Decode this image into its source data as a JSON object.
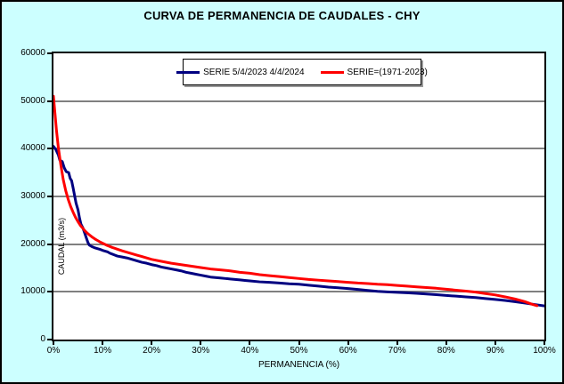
{
  "title": "CURVA DE PERMANENCIA DE CAUDALES - CHY",
  "colors": {
    "background": "#CCFFFF",
    "plot_background": "#FFFFFF",
    "gridline": "#808080",
    "axis": "#000000",
    "series_blue": "#000080",
    "series_red": "#FF0000"
  },
  "chart_data": {
    "type": "line",
    "title": "CURVA DE PERMANENCIA DE CAUDALES - CHY",
    "xlabel": "PERMANENCIA (%)",
    "ylabel": "CAUDAL (m3/s)",
    "xlim": [
      0,
      100
    ],
    "ylim": [
      0,
      60000
    ],
    "x_ticks": [
      "0%",
      "10%",
      "20%",
      "30%",
      "40%",
      "50%",
      "60%",
      "70%",
      "80%",
      "90%",
      "100%"
    ],
    "x_tick_values": [
      0,
      10,
      20,
      30,
      40,
      50,
      60,
      70,
      80,
      90,
      100
    ],
    "y_ticks": [
      0,
      10000,
      20000,
      30000,
      40000,
      50000,
      60000
    ],
    "grid": "horizontal",
    "legend_position": "top-center-inside",
    "series": [
      {
        "name": "SERIE 5/4/2023 4/4/2024",
        "color": "#000080",
        "points": [
          [
            0,
            40500
          ],
          [
            0.5,
            39800
          ],
          [
            1,
            38700
          ],
          [
            1.3,
            37600
          ],
          [
            1.8,
            37300
          ],
          [
            2.2,
            36000
          ],
          [
            2.6,
            35200
          ],
          [
            3.1,
            35000
          ],
          [
            3.4,
            33800
          ],
          [
            3.7,
            33300
          ],
          [
            4,
            31800
          ],
          [
            4.3,
            30200
          ],
          [
            4.6,
            28600
          ],
          [
            5,
            27200
          ],
          [
            5.3,
            25500
          ],
          [
            5.6,
            24200
          ],
          [
            6,
            23400
          ],
          [
            6.3,
            22500
          ],
          [
            6.6,
            21600
          ],
          [
            7,
            20400
          ],
          [
            7.3,
            19800
          ],
          [
            7.8,
            19500
          ],
          [
            8.5,
            19200
          ],
          [
            9.5,
            18900
          ],
          [
            10,
            18700
          ],
          [
            11,
            18400
          ],
          [
            11.5,
            18100
          ],
          [
            12.5,
            17700
          ],
          [
            13,
            17500
          ],
          [
            14,
            17300
          ],
          [
            15,
            17100
          ],
          [
            16,
            16800
          ],
          [
            17,
            16500
          ],
          [
            18,
            16200
          ],
          [
            19,
            16000
          ],
          [
            20,
            15700
          ],
          [
            21,
            15500
          ],
          [
            22,
            15200
          ],
          [
            23,
            15000
          ],
          [
            24,
            14800
          ],
          [
            25,
            14600
          ],
          [
            26,
            14400
          ],
          [
            27,
            14100
          ],
          [
            28,
            13900
          ],
          [
            29,
            13700
          ],
          [
            30,
            13500
          ],
          [
            31,
            13300
          ],
          [
            32,
            13100
          ],
          [
            33,
            13000
          ],
          [
            34,
            12900
          ],
          [
            35,
            12800
          ],
          [
            36,
            12700
          ],
          [
            37,
            12600
          ],
          [
            38,
            12500
          ],
          [
            39,
            12400
          ],
          [
            40,
            12300
          ],
          [
            42,
            12100
          ],
          [
            44,
            12000
          ],
          [
            46,
            11850
          ],
          [
            48,
            11700
          ],
          [
            50,
            11600
          ],
          [
            52,
            11400
          ],
          [
            54,
            11200
          ],
          [
            56,
            11000
          ],
          [
            58,
            10850
          ],
          [
            60,
            10700
          ],
          [
            62,
            10500
          ],
          [
            64,
            10300
          ],
          [
            66,
            10100
          ],
          [
            68,
            10000
          ],
          [
            70,
            9900
          ],
          [
            72,
            9800
          ],
          [
            74,
            9700
          ],
          [
            76,
            9550
          ],
          [
            78,
            9400
          ],
          [
            80,
            9250
          ],
          [
            82,
            9100
          ],
          [
            84,
            8950
          ],
          [
            86,
            8800
          ],
          [
            88,
            8600
          ],
          [
            90,
            8400
          ],
          [
            92,
            8200
          ],
          [
            94,
            7950
          ],
          [
            96,
            7650
          ],
          [
            98,
            7350
          ],
          [
            100,
            7050
          ]
        ]
      },
      {
        "name": "SERIE=(1971-2023)",
        "color": "#FF0000",
        "points": [
          [
            0,
            51000
          ],
          [
            0.3,
            47500
          ],
          [
            0.6,
            44000
          ],
          [
            1,
            40200
          ],
          [
            1.5,
            36600
          ],
          [
            2,
            33500
          ],
          [
            2.5,
            31200
          ],
          [
            3,
            29400
          ],
          [
            3.5,
            27900
          ],
          [
            4,
            26700
          ],
          [
            4.5,
            25600
          ],
          [
            5,
            24700
          ],
          [
            5.5,
            23900
          ],
          [
            6,
            23300
          ],
          [
            6.5,
            22700
          ],
          [
            7,
            22200
          ],
          [
            7.5,
            21800
          ],
          [
            8,
            21400
          ],
          [
            8.5,
            21050
          ],
          [
            9,
            20750
          ],
          [
            9.5,
            20450
          ],
          [
            10,
            20200
          ],
          [
            11,
            19700
          ],
          [
            12,
            19300
          ],
          [
            13,
            18950
          ],
          [
            14,
            18600
          ],
          [
            15,
            18300
          ],
          [
            16,
            18000
          ],
          [
            17,
            17700
          ],
          [
            18,
            17400
          ],
          [
            19,
            17100
          ],
          [
            20,
            16800
          ],
          [
            22,
            16400
          ],
          [
            24,
            16000
          ],
          [
            26,
            15700
          ],
          [
            28,
            15400
          ],
          [
            30,
            15100
          ],
          [
            32,
            14800
          ],
          [
            34,
            14600
          ],
          [
            36,
            14400
          ],
          [
            38,
            14100
          ],
          [
            40,
            13900
          ],
          [
            42,
            13600
          ],
          [
            44,
            13400
          ],
          [
            46,
            13200
          ],
          [
            48,
            13000
          ],
          [
            50,
            12800
          ],
          [
            52,
            12600
          ],
          [
            54,
            12450
          ],
          [
            56,
            12300
          ],
          [
            58,
            12150
          ],
          [
            60,
            12000
          ],
          [
            62,
            11850
          ],
          [
            64,
            11750
          ],
          [
            66,
            11600
          ],
          [
            68,
            11500
          ],
          [
            70,
            11350
          ],
          [
            72,
            11200
          ],
          [
            74,
            11050
          ],
          [
            76,
            10900
          ],
          [
            78,
            10750
          ],
          [
            80,
            10550
          ],
          [
            82,
            10350
          ],
          [
            84,
            10150
          ],
          [
            86,
            9950
          ],
          [
            88,
            9650
          ],
          [
            90,
            9350
          ],
          [
            92,
            8950
          ],
          [
            94,
            8500
          ],
          [
            96,
            7950
          ],
          [
            97.5,
            7400
          ],
          [
            98.5,
            7100
          ]
        ]
      }
    ]
  }
}
